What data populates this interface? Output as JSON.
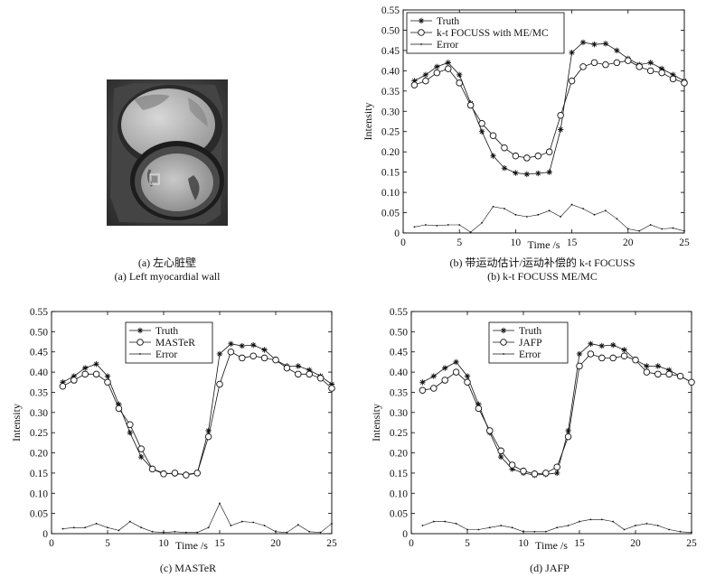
{
  "captions": {
    "a_cn": "(a) 左心脏壁",
    "a_en": "(a) Left myocardial wall",
    "b_cn": "(b) 带运动估计/运动补偿的 k-t FOCUSS",
    "b_en": "(b) k-t FOCUSS ME/MC",
    "c": "(c) MASTeR",
    "d": "(d) JAFP"
  },
  "colors": {
    "line": "#111111",
    "axis": "#000000"
  },
  "chart_data": [
    {
      "id": "b",
      "type": "line",
      "xlabel": "Time /s",
      "ylabel": "Intensity",
      "xlim": [
        0,
        25
      ],
      "ylim": [
        0,
        0.55
      ],
      "xticks": [
        0,
        5,
        10,
        15,
        20,
        25
      ],
      "yticks": [
        0,
        0.05,
        0.1,
        0.15,
        0.2,
        0.25,
        0.3,
        0.35,
        0.4,
        0.45,
        0.5,
        0.55
      ],
      "legend_position": "top-left",
      "grid": false,
      "x": [
        1,
        2,
        3,
        4,
        5,
        6,
        7,
        8,
        9,
        10,
        11,
        12,
        13,
        14,
        15,
        16,
        17,
        18,
        19,
        20,
        21,
        22,
        23,
        24,
        25
      ],
      "series": [
        {
          "name": "Truth",
          "marker": "star",
          "values": [
            0.375,
            0.39,
            0.41,
            0.42,
            0.39,
            0.32,
            0.25,
            0.19,
            0.16,
            0.148,
            0.145,
            0.147,
            0.15,
            0.255,
            0.445,
            0.47,
            0.465,
            0.467,
            0.45,
            0.43,
            0.415,
            0.42,
            0.405,
            0.39,
            0.375
          ]
        },
        {
          "name": "k-t FOCUSS with ME/MC",
          "marker": "circle",
          "values": [
            0.365,
            0.375,
            0.395,
            0.405,
            0.37,
            0.315,
            0.27,
            0.24,
            0.21,
            0.19,
            0.185,
            0.19,
            0.2,
            0.29,
            0.375,
            0.41,
            0.42,
            0.415,
            0.42,
            0.425,
            0.41,
            0.4,
            0.395,
            0.38,
            0.37
          ]
        },
        {
          "name": "Error",
          "marker": "dot",
          "values": [
            0.015,
            0.02,
            0.018,
            0.02,
            0.02,
            0.002,
            0.025,
            0.065,
            0.06,
            0.045,
            0.04,
            0.045,
            0.055,
            0.04,
            0.07,
            0.06,
            0.045,
            0.055,
            0.035,
            0.01,
            0.005,
            0.02,
            0.01,
            0.012,
            0.005
          ]
        }
      ]
    },
    {
      "id": "c",
      "type": "line",
      "xlabel": "Time /s",
      "ylabel": "Intensity",
      "xlim": [
        0,
        25
      ],
      "ylim": [
        0,
        0.55
      ],
      "xticks": [
        0,
        5,
        10,
        15,
        20,
        25
      ],
      "yticks": [
        0,
        0.05,
        0.1,
        0.15,
        0.2,
        0.25,
        0.3,
        0.35,
        0.4,
        0.45,
        0.5,
        0.55
      ],
      "legend_position": "top-center",
      "grid": false,
      "x": [
        1,
        2,
        3,
        4,
        5,
        6,
        7,
        8,
        9,
        10,
        11,
        12,
        13,
        14,
        15,
        16,
        17,
        18,
        19,
        20,
        21,
        22,
        23,
        24,
        25
      ],
      "series": [
        {
          "name": "Truth",
          "marker": "star",
          "values": [
            0.375,
            0.39,
            0.41,
            0.42,
            0.39,
            0.32,
            0.25,
            0.19,
            0.16,
            0.15,
            0.148,
            0.147,
            0.15,
            0.255,
            0.445,
            0.47,
            0.465,
            0.467,
            0.455,
            0.43,
            0.415,
            0.415,
            0.405,
            0.39,
            0.37
          ]
        },
        {
          "name": "MASTeR",
          "marker": "circle",
          "values": [
            0.365,
            0.38,
            0.395,
            0.395,
            0.375,
            0.31,
            0.27,
            0.21,
            0.16,
            0.148,
            0.15,
            0.145,
            0.15,
            0.24,
            0.37,
            0.45,
            0.435,
            0.44,
            0.435,
            0.43,
            0.41,
            0.395,
            0.395,
            0.385,
            0.36
          ]
        },
        {
          "name": "Error",
          "marker": "dot",
          "values": [
            0.012,
            0.015,
            0.015,
            0.025,
            0.015,
            0.008,
            0.03,
            0.015,
            0.005,
            0.003,
            0.005,
            0.003,
            0.003,
            0.015,
            0.075,
            0.02,
            0.03,
            0.028,
            0.02,
            0.005,
            0.003,
            0.022,
            0.005,
            0.003,
            0.025
          ]
        }
      ]
    },
    {
      "id": "d",
      "type": "line",
      "xlabel": "Time /s",
      "ylabel": "Intensity",
      "xlim": [
        0,
        25
      ],
      "ylim": [
        0,
        0.55
      ],
      "xticks": [
        0,
        5,
        10,
        15,
        20,
        25
      ],
      "yticks": [
        0,
        0.05,
        0.1,
        0.15,
        0.2,
        0.25,
        0.3,
        0.35,
        0.4,
        0.45,
        0.5,
        0.55
      ],
      "legend_position": "top-center",
      "grid": false,
      "x": [
        1,
        2,
        3,
        4,
        5,
        6,
        7,
        8,
        9,
        10,
        11,
        12,
        13,
        14,
        15,
        16,
        17,
        18,
        19,
        20,
        21,
        22,
        23,
        24,
        25
      ],
      "series": [
        {
          "name": "Truth",
          "marker": "star",
          "values": [
            0.375,
            0.39,
            0.41,
            0.425,
            0.39,
            0.32,
            0.25,
            0.19,
            0.16,
            0.15,
            0.145,
            0.147,
            0.15,
            0.255,
            0.445,
            0.47,
            0.465,
            0.467,
            0.455,
            0.43,
            0.415,
            0.415,
            0.405,
            0.39,
            0.375
          ]
        },
        {
          "name": "JAFP",
          "marker": "circle",
          "values": [
            0.355,
            0.36,
            0.38,
            0.4,
            0.375,
            0.31,
            0.255,
            0.205,
            0.17,
            0.155,
            0.148,
            0.15,
            0.165,
            0.24,
            0.415,
            0.445,
            0.435,
            0.435,
            0.44,
            0.43,
            0.4,
            0.395,
            0.395,
            0.39,
            0.375
          ]
        },
        {
          "name": "Error",
          "marker": "dot",
          "values": [
            0.02,
            0.03,
            0.03,
            0.025,
            0.01,
            0.01,
            0.015,
            0.02,
            0.015,
            0.005,
            0.005,
            0.005,
            0.015,
            0.02,
            0.03,
            0.035,
            0.035,
            0.03,
            0.01,
            0.02,
            0.025,
            0.02,
            0.01,
            0.005,
            0.003
          ]
        }
      ]
    }
  ]
}
